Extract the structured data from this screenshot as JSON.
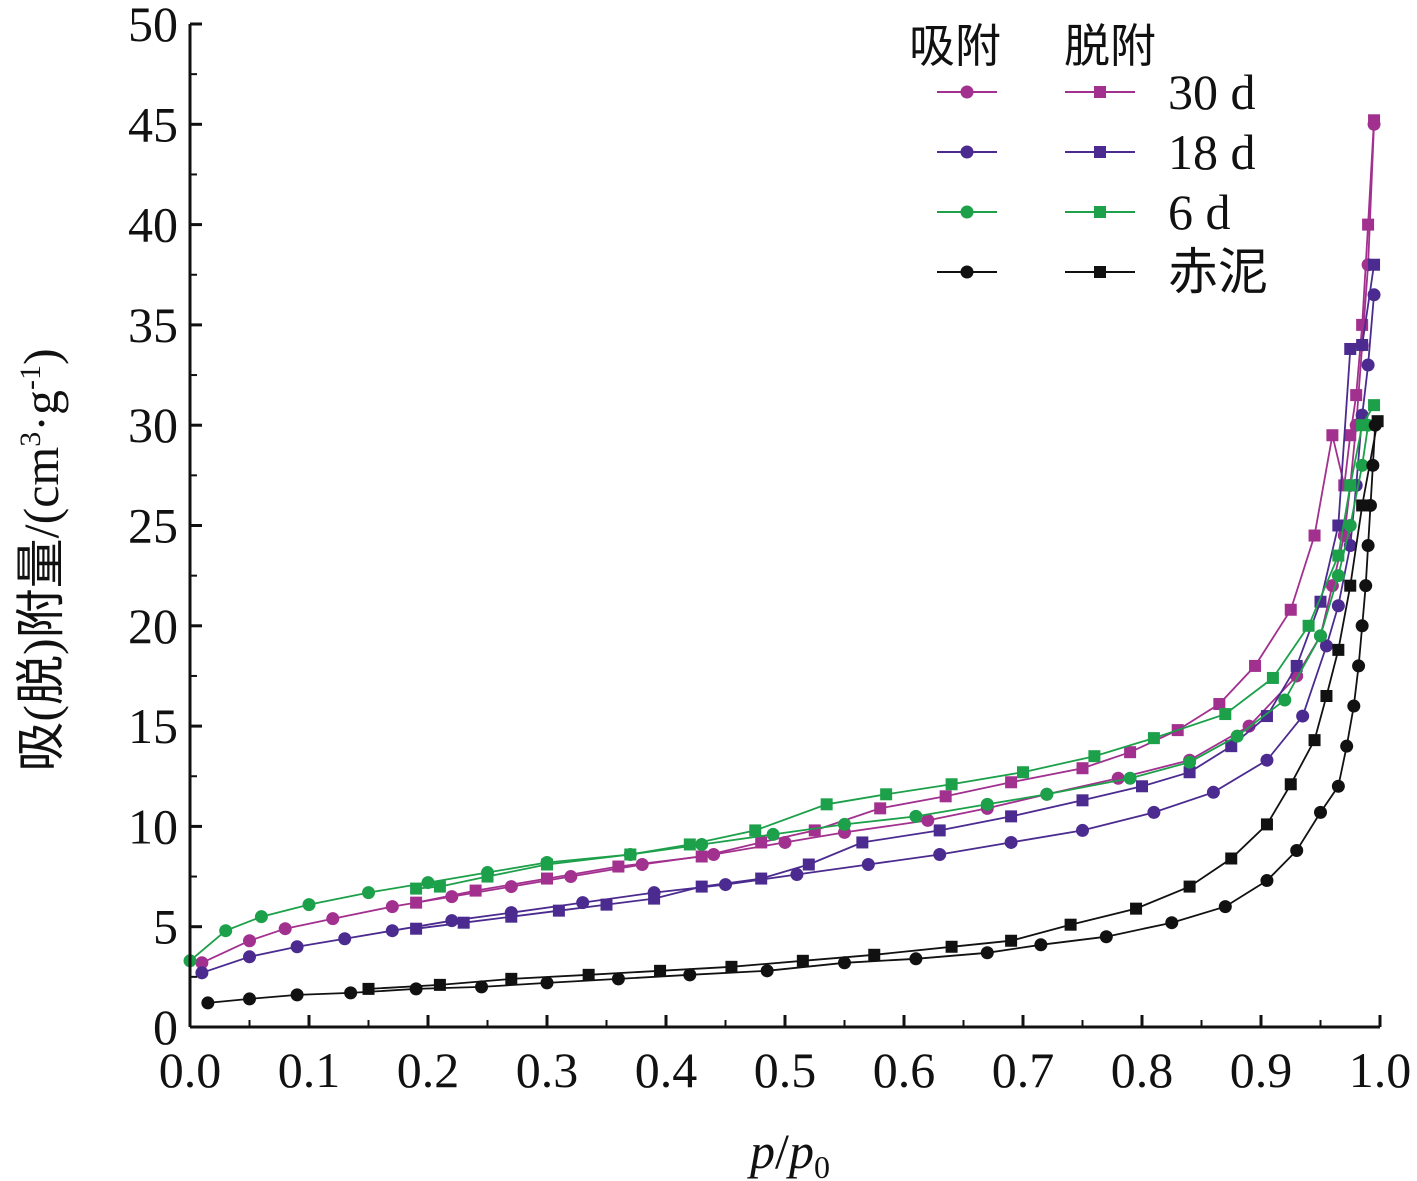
{
  "chart_data": {
    "type": "line",
    "xlabel": "p/p0",
    "xlabel_parts": {
      "p": "p",
      "slash": "/",
      "p0": "p",
      "sub": "0"
    },
    "ylabel": "吸(脱)附量/(cm³·g⁻¹)",
    "ylabel_parts": {
      "main": "吸(脱)附量/(cm",
      "sup3": "3",
      "mid": "·g",
      "supneg1": "-1",
      "close": ")"
    },
    "xlim": [
      0.0,
      1.0
    ],
    "ylim": [
      0,
      50
    ],
    "x_ticks": [
      "0.0",
      "0.1",
      "0.2",
      "0.3",
      "0.4",
      "0.5",
      "0.6",
      "0.7",
      "0.8",
      "0.9",
      "1.0"
    ],
    "y_ticks": [
      "0",
      "5",
      "10",
      "15",
      "20",
      "25",
      "30",
      "35",
      "40",
      "45",
      "50"
    ],
    "grid": false,
    "legend": {
      "placement": "top-right",
      "header_adsorption": "吸附",
      "header_desorption": "脱附"
    },
    "series": [
      {
        "name": "30 d",
        "color": "#a2308f",
        "adsorption": {
          "x": [
            0.01,
            0.05,
            0.08,
            0.12,
            0.17,
            0.22,
            0.27,
            0.32,
            0.38,
            0.44,
            0.5,
            0.55,
            0.62,
            0.67,
            0.72,
            0.78,
            0.84,
            0.89,
            0.93,
            0.95,
            0.96,
            0.97,
            0.975,
            0.98,
            0.985,
            0.99,
            0.995
          ],
          "y": [
            3.2,
            4.3,
            4.9,
            5.4,
            6.0,
            6.5,
            7.0,
            7.5,
            8.1,
            8.6,
            9.2,
            9.7,
            10.3,
            10.9,
            11.6,
            12.4,
            13.3,
            15.0,
            17.5,
            19.5,
            22.0,
            24.5,
            27.0,
            30.0,
            34.0,
            38.0,
            45.0
          ]
        },
        "desorption": {
          "x": [
            0.995,
            0.99,
            0.985,
            0.98,
            0.975,
            0.97,
            0.96,
            0.945,
            0.925,
            0.895,
            0.865,
            0.83,
            0.79,
            0.75,
            0.69,
            0.635,
            0.58,
            0.525,
            0.48,
            0.43,
            0.36,
            0.3,
            0.24,
            0.19
          ],
          "y": [
            45.2,
            40.0,
            35.0,
            31.5,
            29.5,
            27.0,
            29.5,
            24.5,
            20.8,
            18.0,
            16.1,
            14.8,
            13.7,
            12.9,
            12.2,
            11.5,
            10.9,
            9.8,
            9.2,
            8.5,
            8.0,
            7.4,
            6.8,
            6.2
          ]
        }
      },
      {
        "name": "18 d",
        "color": "#4b2b8f",
        "adsorption": {
          "x": [
            0.01,
            0.05,
            0.09,
            0.13,
            0.17,
            0.22,
            0.27,
            0.33,
            0.39,
            0.45,
            0.51,
            0.57,
            0.63,
            0.69,
            0.75,
            0.81,
            0.86,
            0.905,
            0.935,
            0.955,
            0.965,
            0.975,
            0.98,
            0.985,
            0.99,
            0.995
          ],
          "y": [
            2.7,
            3.5,
            4.0,
            4.4,
            4.8,
            5.3,
            5.7,
            6.2,
            6.7,
            7.1,
            7.6,
            8.1,
            8.6,
            9.2,
            9.8,
            10.7,
            11.7,
            13.3,
            15.5,
            19.0,
            21.0,
            24.0,
            27.0,
            30.5,
            33.0,
            36.5
          ]
        },
        "desorption": {
          "x": [
            0.995,
            0.985,
            0.975,
            0.965,
            0.95,
            0.93,
            0.905,
            0.875,
            0.84,
            0.8,
            0.75,
            0.69,
            0.63,
            0.565,
            0.52,
            0.48,
            0.43,
            0.39,
            0.35,
            0.31,
            0.27,
            0.23,
            0.19
          ],
          "y": [
            38.0,
            34.0,
            33.8,
            25.0,
            21.2,
            18.0,
            15.5,
            14.0,
            12.7,
            12.0,
            11.3,
            10.5,
            9.8,
            9.2,
            8.1,
            7.4,
            7.0,
            6.4,
            6.1,
            5.8,
            5.5,
            5.2,
            4.9
          ]
        }
      },
      {
        "name": "6 d",
        "color": "#1ca04a",
        "adsorption": {
          "x": [
            0.0,
            0.03,
            0.06,
            0.1,
            0.15,
            0.2,
            0.25,
            0.3,
            0.37,
            0.43,
            0.49,
            0.55,
            0.61,
            0.67,
            0.72,
            0.79,
            0.84,
            0.88,
            0.92,
            0.95,
            0.965,
            0.975,
            0.985,
            0.99
          ],
          "y": [
            3.3,
            4.8,
            5.5,
            6.1,
            6.7,
            7.2,
            7.7,
            8.2,
            8.6,
            9.1,
            9.6,
            10.1,
            10.5,
            11.1,
            11.6,
            12.4,
            13.2,
            14.5,
            16.3,
            19.5,
            22.5,
            25.0,
            28.0,
            30.0
          ]
        },
        "desorption": {
          "x": [
            0.995,
            0.985,
            0.975,
            0.965,
            0.94,
            0.91,
            0.87,
            0.81,
            0.76,
            0.7,
            0.64,
            0.585,
            0.535,
            0.475,
            0.42,
            0.37,
            0.3,
            0.25,
            0.21,
            0.19
          ],
          "y": [
            31.0,
            30.0,
            27.0,
            23.5,
            20.0,
            17.4,
            15.6,
            14.4,
            13.5,
            12.7,
            12.1,
            11.6,
            11.1,
            9.8,
            9.1,
            8.6,
            8.1,
            7.5,
            7.0,
            6.9
          ]
        }
      },
      {
        "name": "赤泥",
        "color": "#111111",
        "adsorption": {
          "x": [
            0.015,
            0.05,
            0.09,
            0.135,
            0.19,
            0.245,
            0.3,
            0.36,
            0.42,
            0.485,
            0.55,
            0.61,
            0.67,
            0.715,
            0.77,
            0.825,
            0.87,
            0.905,
            0.93,
            0.95,
            0.965,
            0.972,
            0.978,
            0.982,
            0.985,
            0.988,
            0.99,
            0.992,
            0.994,
            0.996
          ],
          "y": [
            1.2,
            1.4,
            1.6,
            1.7,
            1.9,
            2.0,
            2.2,
            2.4,
            2.6,
            2.8,
            3.2,
            3.4,
            3.7,
            4.1,
            4.5,
            5.2,
            6.0,
            7.3,
            8.8,
            10.7,
            12.0,
            14.0,
            16.0,
            18.0,
            20.0,
            22.0,
            24.0,
            26.0,
            28.0,
            30.0
          ]
        },
        "desorption": {
          "x": [
            0.998,
            0.985,
            0.975,
            0.965,
            0.955,
            0.945,
            0.925,
            0.905,
            0.875,
            0.84,
            0.795,
            0.74,
            0.69,
            0.64,
            0.575,
            0.515,
            0.455,
            0.395,
            0.335,
            0.27,
            0.21,
            0.15
          ],
          "y": [
            30.2,
            26.0,
            22.0,
            18.8,
            16.5,
            14.3,
            12.1,
            10.1,
            8.4,
            7.0,
            5.9,
            5.1,
            4.3,
            4.0,
            3.6,
            3.3,
            3.0,
            2.8,
            2.6,
            2.4,
            2.1,
            1.9
          ]
        }
      }
    ]
  }
}
